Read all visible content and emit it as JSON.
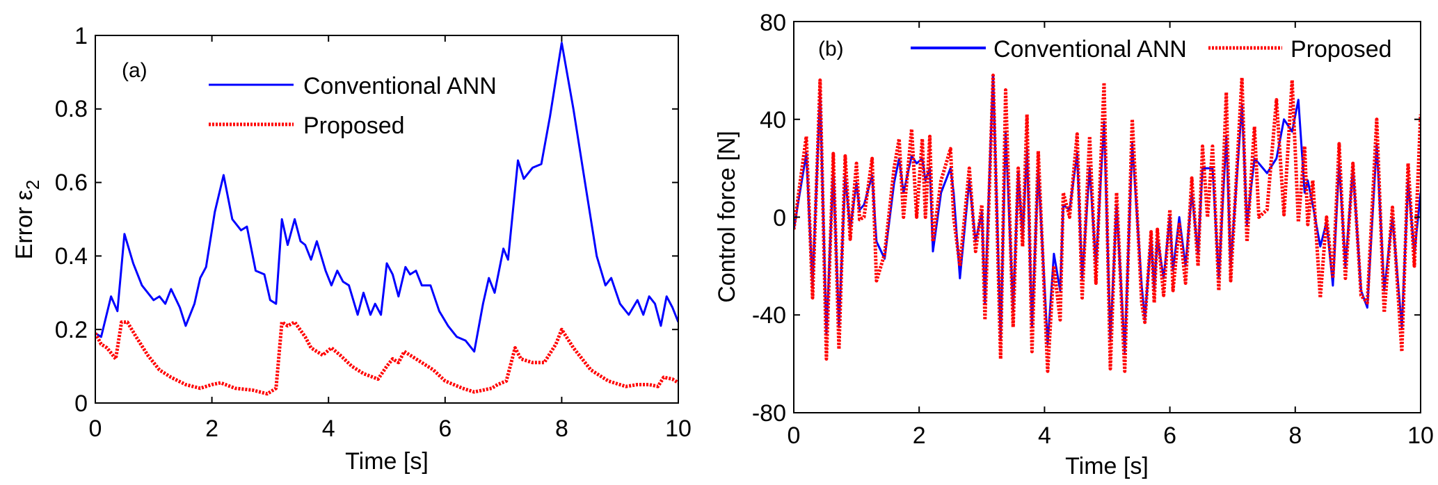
{
  "colors": {
    "conventional": "#0000ff",
    "proposed": "#ff0000",
    "axis": "#000000"
  },
  "chart_data": [
    {
      "type": "line",
      "annotation": "(a)",
      "xlabel": "Time [s]",
      "ylabel_main": "Error ε",
      "ylabel_sub": "2",
      "xlim": [
        0,
        10
      ],
      "ylim": [
        0,
        1
      ],
      "xticks": [
        "0",
        "2",
        "4",
        "6",
        "8",
        "10"
      ],
      "yticks": [
        "0",
        "0.2",
        "0.4",
        "0.6",
        "0.8",
        "1"
      ],
      "xtick_values": [
        0,
        2,
        4,
        6,
        8,
        10
      ],
      "ytick_values": [
        0,
        0.2,
        0.4,
        0.6,
        0.8,
        1
      ],
      "legend_placement": "top-center",
      "grid": false,
      "series": [
        {
          "name": "Conventional ANN",
          "style": "solid",
          "color": "#0000ff",
          "x": [
            0,
            0.1,
            0.27,
            0.38,
            0.5,
            0.65,
            0.8,
            1.0,
            1.1,
            1.2,
            1.3,
            1.45,
            1.55,
            1.7,
            1.8,
            1.9,
            2.05,
            2.2,
            2.35,
            2.5,
            2.6,
            2.75,
            2.9,
            3.0,
            3.1,
            3.2,
            3.3,
            3.42,
            3.52,
            3.6,
            3.7,
            3.8,
            3.95,
            4.05,
            4.15,
            4.25,
            4.35,
            4.5,
            4.6,
            4.72,
            4.8,
            4.9,
            5.0,
            5.1,
            5.2,
            5.32,
            5.4,
            5.5,
            5.6,
            5.75,
            5.9,
            6.05,
            6.2,
            6.35,
            6.5,
            6.65,
            6.75,
            6.85,
            7.0,
            7.08,
            7.25,
            7.35,
            7.5,
            7.65,
            7.8,
            8.0,
            8.2,
            8.4,
            8.6,
            8.75,
            8.85,
            9.0,
            9.15,
            9.3,
            9.4,
            9.5,
            9.6,
            9.7,
            9.8,
            9.9,
            10
          ],
          "y": [
            0.19,
            0.18,
            0.29,
            0.25,
            0.46,
            0.38,
            0.32,
            0.28,
            0.29,
            0.27,
            0.31,
            0.26,
            0.21,
            0.27,
            0.34,
            0.37,
            0.52,
            0.62,
            0.5,
            0.47,
            0.48,
            0.36,
            0.35,
            0.28,
            0.27,
            0.5,
            0.43,
            0.5,
            0.44,
            0.43,
            0.39,
            0.44,
            0.36,
            0.32,
            0.36,
            0.33,
            0.32,
            0.24,
            0.3,
            0.24,
            0.27,
            0.24,
            0.38,
            0.35,
            0.29,
            0.37,
            0.35,
            0.36,
            0.32,
            0.32,
            0.25,
            0.21,
            0.18,
            0.17,
            0.14,
            0.27,
            0.34,
            0.3,
            0.42,
            0.39,
            0.66,
            0.61,
            0.64,
            0.65,
            0.78,
            0.98,
            0.8,
            0.6,
            0.4,
            0.32,
            0.34,
            0.27,
            0.24,
            0.28,
            0.24,
            0.29,
            0.27,
            0.21,
            0.29,
            0.26,
            0.22
          ]
        },
        {
          "name": "Proposed",
          "style": "dotted",
          "color": "#ff0000",
          "x": [
            0,
            0.1,
            0.2,
            0.35,
            0.45,
            0.55,
            0.7,
            0.9,
            1.1,
            1.3,
            1.55,
            1.8,
            2.0,
            2.15,
            2.4,
            2.7,
            2.95,
            3.1,
            3.2,
            3.3,
            3.42,
            3.6,
            3.7,
            3.9,
            4.05,
            4.2,
            4.4,
            4.6,
            4.85,
            5.0,
            5.1,
            5.2,
            5.3,
            5.5,
            5.8,
            6.0,
            6.3,
            6.5,
            6.8,
            6.9,
            7.05,
            7.2,
            7.3,
            7.5,
            7.7,
            7.9,
            8.0,
            8.2,
            8.5,
            8.8,
            9.1,
            9.3,
            9.5,
            9.65,
            9.75,
            9.9,
            10
          ],
          "y": [
            0.19,
            0.16,
            0.15,
            0.12,
            0.22,
            0.22,
            0.18,
            0.13,
            0.09,
            0.07,
            0.05,
            0.04,
            0.05,
            0.055,
            0.04,
            0.035,
            0.025,
            0.04,
            0.22,
            0.21,
            0.22,
            0.18,
            0.15,
            0.13,
            0.15,
            0.13,
            0.1,
            0.08,
            0.065,
            0.1,
            0.12,
            0.11,
            0.14,
            0.12,
            0.09,
            0.06,
            0.04,
            0.03,
            0.04,
            0.05,
            0.06,
            0.15,
            0.12,
            0.11,
            0.11,
            0.16,
            0.2,
            0.15,
            0.09,
            0.06,
            0.045,
            0.05,
            0.05,
            0.045,
            0.07,
            0.065,
            0.055
          ]
        }
      ]
    },
    {
      "type": "line",
      "annotation": "(b)",
      "xlabel": "Time [s]",
      "ylabel": "Control force [N]",
      "xlim": [
        0,
        10
      ],
      "ylim": [
        -80,
        80
      ],
      "xticks": [
        "0",
        "2",
        "4",
        "6",
        "8",
        "10"
      ],
      "yticks": [
        "-80",
        "-40",
        "0",
        "40",
        "80"
      ],
      "xtick_values": [
        0,
        2,
        4,
        6,
        8,
        10
      ],
      "ytick_values": [
        -80,
        -40,
        0,
        40,
        80
      ],
      "legend_placement": "top (horizontal)",
      "grid": false,
      "series": [
        {
          "name": "Conventional ANN",
          "style": "solid",
          "color": "#0000ff",
          "x": [
            0,
            0.2,
            0.3,
            0.42,
            0.52,
            0.63,
            0.72,
            0.82,
            0.9,
            1.0,
            1.05,
            1.12,
            1.25,
            1.32,
            1.45,
            1.6,
            1.68,
            1.75,
            1.88,
            1.96,
            2.05,
            2.1,
            2.17,
            2.22,
            2.35,
            2.5,
            2.55,
            2.65,
            2.8,
            2.9,
            3.0,
            3.05,
            3.18,
            3.3,
            3.38,
            3.5,
            3.58,
            3.65,
            3.72,
            3.8,
            3.9,
            4.05,
            4.15,
            4.25,
            4.3,
            4.4,
            4.52,
            4.6,
            4.72,
            4.82,
            4.95,
            5.05,
            5.15,
            5.28,
            5.4,
            5.55,
            5.6,
            5.7,
            5.75,
            5.8,
            5.9,
            6.0,
            6.05,
            6.15,
            6.25,
            6.35,
            6.45,
            6.52,
            6.6,
            6.68,
            6.78,
            6.9,
            6.97,
            7.15,
            7.23,
            7.35,
            7.42,
            7.55,
            7.7,
            7.82,
            7.95,
            8.05,
            8.15,
            8.2,
            8.28,
            8.4,
            8.5,
            8.6,
            8.7,
            8.8,
            8.92,
            9.05,
            9.15,
            9.3,
            9.42,
            9.55,
            9.7,
            9.8,
            9.9,
            10
          ],
          "y": [
            -5,
            26,
            -28,
            51,
            -48,
            20,
            -45,
            17,
            -5,
            14,
            3,
            5,
            17,
            -10,
            -17,
            14,
            24,
            10,
            25,
            22,
            24,
            15,
            20,
            -14,
            10,
            20,
            10,
            -25,
            15,
            -10,
            2,
            -35,
            58,
            -50,
            35,
            -38,
            18,
            -8,
            28,
            -45,
            20,
            -52,
            -15,
            -30,
            5,
            3,
            26,
            -25,
            20,
            -20,
            39,
            -50,
            5,
            -55,
            30,
            -28,
            -42,
            -8,
            -30,
            -8,
            -25,
            0,
            -22,
            0,
            -20,
            10,
            -15,
            20,
            20,
            20,
            -25,
            33,
            -20,
            46,
            -3,
            24,
            22,
            18,
            24,
            40,
            35,
            48,
            10,
            15,
            5,
            -12,
            -2,
            -28,
            22,
            -20,
            20,
            -30,
            -37,
            30,
            -30,
            0,
            -45,
            15,
            -15,
            10
          ]
        },
        {
          "name": "Proposed",
          "style": "dotted",
          "color": "#ff0000",
          "x": [
            0,
            0.2,
            0.3,
            0.42,
            0.52,
            0.63,
            0.72,
            0.82,
            0.9,
            1.0,
            1.05,
            1.12,
            1.25,
            1.32,
            1.45,
            1.6,
            1.68,
            1.75,
            1.88,
            1.96,
            2.05,
            2.1,
            2.17,
            2.22,
            2.35,
            2.5,
            2.55,
            2.65,
            2.8,
            2.9,
            3.0,
            3.05,
            3.18,
            3.3,
            3.38,
            3.5,
            3.58,
            3.65,
            3.72,
            3.8,
            3.9,
            4.05,
            4.15,
            4.25,
            4.3,
            4.4,
            4.52,
            4.6,
            4.72,
            4.82,
            4.95,
            5.05,
            5.15,
            5.28,
            5.4,
            5.55,
            5.6,
            5.7,
            5.75,
            5.8,
            5.9,
            6.0,
            6.05,
            6.15,
            6.25,
            6.35,
            6.45,
            6.52,
            6.6,
            6.68,
            6.78,
            6.9,
            6.97,
            7.15,
            7.23,
            7.35,
            7.42,
            7.55,
            7.7,
            7.82,
            7.95,
            8.05,
            8.15,
            8.2,
            8.28,
            8.4,
            8.5,
            8.6,
            8.7,
            8.8,
            8.92,
            9.05,
            9.15,
            9.3,
            9.42,
            9.55,
            9.7,
            9.8,
            9.9,
            10
          ],
          "y": [
            -5,
            33,
            -33,
            56,
            -58,
            26,
            -54,
            25,
            -9,
            22,
            -1,
            0,
            24,
            -26,
            -15,
            20,
            32,
            0,
            36,
            0,
            32,
            0,
            33,
            -10,
            15,
            28,
            0,
            -20,
            20,
            -14,
            5,
            -42,
            58,
            -58,
            52,
            -45,
            20,
            -12,
            42,
            -55,
            27,
            -63,
            -20,
            -42,
            10,
            0,
            34,
            -33,
            33,
            -27,
            55,
            -62,
            10,
            -63,
            40,
            -35,
            -43,
            -6,
            -35,
            -5,
            -32,
            3,
            -30,
            -3,
            -27,
            16,
            -20,
            29,
            0,
            29,
            -30,
            51,
            -26,
            57,
            -10,
            37,
            0,
            3,
            48,
            1,
            56,
            -2,
            29,
            -3,
            15,
            -33,
            0,
            -25,
            30,
            -25,
            22,
            -32,
            -35,
            40,
            -39,
            4,
            -55,
            22,
            -20,
            42
          ]
        }
      ]
    }
  ]
}
